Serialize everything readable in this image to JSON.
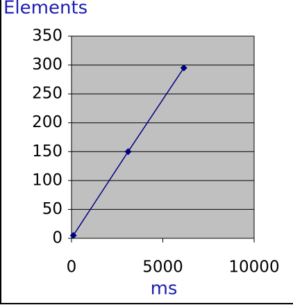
{
  "chart_data": {
    "type": "line",
    "y_label": "Elements",
    "x_label": "ms",
    "x": [
      100,
      3100,
      6150
    ],
    "series": [
      {
        "name": "Elements",
        "color": "#000080",
        "values": [
          5,
          150,
          295
        ]
      }
    ],
    "xlim": [
      0,
      10000
    ],
    "xticks": [
      0,
      5000,
      10000
    ],
    "ylim": [
      0,
      350
    ],
    "yticks": [
      0,
      50,
      100,
      150,
      200,
      250,
      300,
      350
    ],
    "grid": true,
    "plot_background": "#c0c0c0"
  }
}
